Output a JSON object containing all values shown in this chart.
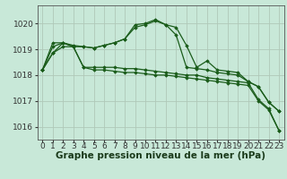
{
  "background_color": "#c8e8d8",
  "plot_bg_color": "#c8e8d8",
  "grid_color": "#b0c8b8",
  "line_color": "#1a5c1a",
  "xlabel": "Graphe pression niveau de la mer (hPa)",
  "xlabel_fontsize": 7.5,
  "tick_fontsize": 6.5,
  "ylim": [
    1015.5,
    1020.7
  ],
  "xlim": [
    -0.5,
    23.5
  ],
  "yticks": [
    1016,
    1017,
    1018,
    1019,
    1020
  ],
  "xticks": [
    0,
    1,
    2,
    3,
    4,
    5,
    6,
    7,
    8,
    9,
    10,
    11,
    12,
    13,
    14,
    15,
    16,
    17,
    18,
    19,
    20,
    21,
    22,
    23
  ],
  "series": [
    [
      1018.2,
      1018.85,
      1019.25,
      1019.15,
      1019.1,
      1019.05,
      1019.15,
      1019.25,
      1019.4,
      1019.85,
      1019.95,
      1020.1,
      1019.95,
      1019.85,
      1019.15,
      1018.3,
      1018.55,
      1018.2,
      1018.15,
      1018.1,
      1017.75,
      1017.55,
      1016.95,
      1016.6
    ],
    [
      1018.2,
      1019.25,
      1019.25,
      1019.1,
      1019.1,
      1019.05,
      1019.15,
      1019.25,
      1019.4,
      1019.95,
      1020.0,
      1020.15,
      1019.95,
      1019.55,
      1018.3,
      1018.25,
      1018.2,
      1018.1,
      1018.05,
      1018.0,
      1017.75,
      1017.55,
      1016.95,
      1016.6
    ],
    [
      1018.2,
      1019.1,
      1019.25,
      1019.1,
      1018.3,
      1018.3,
      1018.3,
      1018.3,
      1018.25,
      1018.25,
      1018.2,
      1018.15,
      1018.1,
      1018.05,
      1018.0,
      1018.0,
      1017.9,
      1017.85,
      1017.8,
      1017.75,
      1017.7,
      1017.05,
      1016.7,
      1015.85
    ],
    [
      1018.2,
      1018.85,
      1019.1,
      1019.1,
      1018.3,
      1018.2,
      1018.2,
      1018.15,
      1018.1,
      1018.1,
      1018.05,
      1018.0,
      1018.0,
      1017.95,
      1017.9,
      1017.85,
      1017.8,
      1017.75,
      1017.7,
      1017.65,
      1017.6,
      1017.0,
      1016.65,
      1015.85
    ]
  ]
}
